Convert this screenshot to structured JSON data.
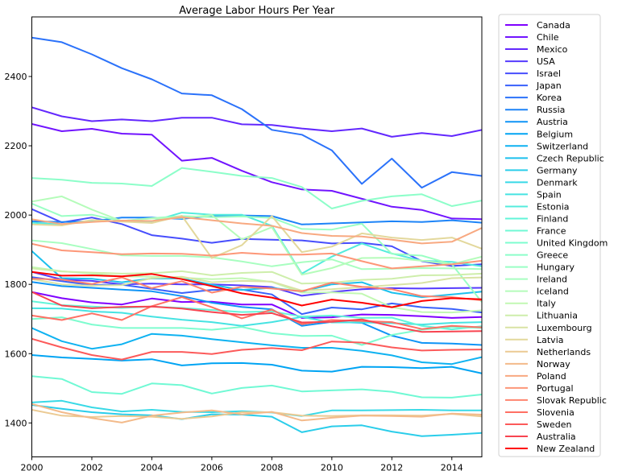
{
  "chart_data": {
    "type": "line",
    "title": "Average Labor Hours Per Year",
    "xlabel": "",
    "ylabel": "",
    "xlim": [
      2000,
      2015
    ],
    "ylim": [
      1302,
      2572
    ],
    "xticks": [
      2000,
      2002,
      2004,
      2006,
      2008,
      2010,
      2012,
      2014
    ],
    "yticks": [
      1400,
      1600,
      1800,
      2000,
      2200,
      2400
    ],
    "grid": false,
    "legend_position": "outside-right",
    "x": [
      2000,
      2001,
      2002,
      2003,
      2004,
      2005,
      2006,
      2007,
      2008,
      2009,
      2010,
      2011,
      2012,
      2013,
      2014,
      2015
    ],
    "series": [
      {
        "name": "Canada",
        "color": "#7f00ff",
        "values": [
          1778,
          1760,
          1748,
          1742,
          1759,
          1749,
          1750,
          1742,
          1742,
          1703,
          1705,
          1713,
          1712,
          1708,
          1703,
          1706
        ]
      },
      {
        "name": "Chile",
        "color": "#7114ff",
        "values": [
          2263,
          2242,
          2249,
          2235,
          2232,
          2157,
          2165,
          2128,
          2095,
          2074,
          2070,
          2047,
          2024,
          2015,
          1990,
          1988
        ]
      },
      {
        "name": "Mexico",
        "color": "#6328fe",
        "values": [
          2311,
          2285,
          2271,
          2276,
          2271,
          2281,
          2281,
          2262,
          2260,
          2250,
          2242,
          2250,
          2226,
          2237,
          2228,
          2246
        ]
      },
      {
        "name": "USA",
        "color": "#553bfe",
        "values": [
          1836,
          1814,
          1810,
          1800,
          1802,
          1800,
          1800,
          1797,
          1792,
          1767,
          1778,
          1786,
          1789,
          1788,
          1789,
          1790
        ]
      },
      {
        "name": "Israel",
        "color": "#474efd",
        "values": [
          2017,
          1979,
          1993,
          1974,
          1942,
          1932,
          1920,
          1931,
          1929,
          1927,
          1918,
          1920,
          1910,
          1867,
          1853,
          1858
        ]
      },
      {
        "name": "Japan",
        "color": "#3961fb",
        "values": [
          1821,
          1809,
          1798,
          1799,
          1787,
          1775,
          1784,
          1785,
          1771,
          1714,
          1733,
          1728,
          1745,
          1734,
          1729,
          1719
        ]
      },
      {
        "name": "Korea",
        "color": "#2b72fa",
        "values": [
          2512,
          2499,
          2464,
          2424,
          2392,
          2351,
          2346,
          2306,
          2246,
          2232,
          2187,
          2090,
          2163,
          2079,
          2124,
          2113
        ]
      },
      {
        "name": "Russia",
        "color": "#1d84f8",
        "values": [
          1982,
          1980,
          1982,
          1993,
          1993,
          1989,
          1998,
          1999,
          1997,
          1973,
          1976,
          1979,
          1982,
          1980,
          1985,
          1978
        ]
      },
      {
        "name": "Austria",
        "color": "#0f94f6",
        "values": [
          1807,
          1795,
          1790,
          1785,
          1780,
          1766,
          1747,
          1735,
          1728,
          1680,
          1692,
          1689,
          1652,
          1631,
          1629,
          1625
        ]
      },
      {
        "name": "Belgium",
        "color": "#00a4f3",
        "values": [
          1596,
          1589,
          1585,
          1580,
          1584,
          1566,
          1572,
          1573,
          1568,
          1551,
          1548,
          1562,
          1561,
          1558,
          1562,
          1543
        ]
      },
      {
        "name": "Switzerland",
        "color": "#0eb2f1",
        "values": [
          1674,
          1636,
          1614,
          1627,
          1657,
          1652,
          1642,
          1633,
          1624,
          1617,
          1617,
          1608,
          1595,
          1575,
          1570,
          1590
        ]
      },
      {
        "name": "Czech Republic",
        "color": "#1cc0ed",
        "values": [
          1896,
          1818,
          1816,
          1806,
          1817,
          1817,
          1799,
          1784,
          1790,
          1779,
          1800,
          1806,
          1776,
          1763,
          1771,
          1779
        ]
      },
      {
        "name": "Germany",
        "color": "#2acdea",
        "values": [
          1452,
          1441,
          1431,
          1425,
          1422,
          1411,
          1425,
          1424,
          1418,
          1373,
          1390,
          1393,
          1375,
          1362,
          1366,
          1371
        ]
      },
      {
        "name": "Denmark",
        "color": "#38d9e6",
        "values": [
          1459,
          1464,
          1445,
          1433,
          1438,
          1432,
          1431,
          1434,
          1430,
          1420,
          1436,
          1436,
          1437,
          1438,
          1436,
          1436
        ]
      },
      {
        "name": "Spain",
        "color": "#46e3e2",
        "values": [
          1731,
          1730,
          1722,
          1718,
          1707,
          1698,
          1691,
          1680,
          1691,
          1706,
          1690,
          1690,
          1688,
          1684,
          1689,
          1691
        ]
      },
      {
        "name": "Estonia",
        "color": "#54ecdd",
        "values": [
          1978,
          1973,
          1983,
          1983,
          1982,
          2007,
          2001,
          2001,
          1969,
          1831,
          1880,
          1918,
          1889,
          1868,
          1865,
          1852
        ]
      },
      {
        "name": "Finland",
        "color": "#62f4d9",
        "values": [
          1751,
          1740,
          1736,
          1732,
          1736,
          1732,
          1726,
          1720,
          1722,
          1707,
          1710,
          1703,
          1704,
          1680,
          1670,
          1679
        ]
      },
      {
        "name": "France",
        "color": "#70f9d4",
        "values": [
          1535,
          1527,
          1489,
          1484,
          1514,
          1509,
          1485,
          1501,
          1508,
          1491,
          1494,
          1497,
          1490,
          1474,
          1473,
          1482
        ]
      },
      {
        "name": "United Kingdom",
        "color": "#7efccf",
        "values": [
          1700,
          1705,
          1684,
          1674,
          1674,
          1674,
          1669,
          1677,
          1659,
          1651,
          1652,
          1625,
          1654,
          1669,
          1677,
          1674
        ]
      },
      {
        "name": "Greece",
        "color": "#8cfec9",
        "values": [
          2107,
          2102,
          2093,
          2091,
          2084,
          2136,
          2125,
          2113,
          2107,
          2081,
          2019,
          2041,
          2054,
          2060,
          2026,
          2042
        ]
      },
      {
        "name": "Hungary",
        "color": "#9affc4",
        "values": [
          2033,
          1997,
          2001,
          1983,
          1991,
          1997,
          1994,
          1996,
          1992,
          1960,
          1958,
          1975,
          1888,
          1883,
          1858,
          1749
        ]
      },
      {
        "name": "Ireland",
        "color": "#a8fec0",
        "values": [
          1927,
          1919,
          1902,
          1884,
          1882,
          1882,
          1878,
          1866,
          1852,
          1864,
          1872,
          1844,
          1845,
          1847,
          1846,
          1844
        ]
      },
      {
        "name": "Iceland",
        "color": "#b5fcba",
        "values": [
          2039,
          2054,
          2016,
          1983,
          1990,
          1992,
          2000,
          1930,
          1965,
          1828,
          1847,
          1876,
          1877,
          1868,
          1858,
          1880
        ]
      },
      {
        "name": "Italy",
        "color": "#c2f8b3",
        "values": [
          1850,
          1838,
          1831,
          1823,
          1822,
          1819,
          1815,
          1818,
          1807,
          1776,
          1777,
          1773,
          1734,
          1720,
          1719,
          1725
        ]
      },
      {
        "name": "Lithuania",
        "color": "#ceeeab",
        "values": [
          1846,
          1837,
          1834,
          1831,
          1832,
          1838,
          1826,
          1833,
          1836,
          1802,
          1805,
          1813,
          1816,
          1826,
          1827,
          1831
        ]
      },
      {
        "name": "Luxembourg",
        "color": "#d9e3a4",
        "values": [
          1815,
          1800,
          1796,
          1798,
          1818,
          1822,
          1806,
          1810,
          1808,
          1782,
          1786,
          1792,
          1798,
          1804,
          1818,
          1820
        ]
      },
      {
        "name": "Latvia",
        "color": "#e3d89c",
        "values": [
          1973,
          1970,
          1986,
          1981,
          1977,
          1998,
          1876,
          1913,
          1997,
          1893,
          1909,
          1947,
          1935,
          1928,
          1935,
          1903
        ]
      },
      {
        "name": "Netherlands",
        "color": "#ebca93",
        "values": [
          1438,
          1421,
          1417,
          1420,
          1418,
          1412,
          1419,
          1431,
          1431,
          1421,
          1420,
          1422,
          1422,
          1421,
          1426,
          1419
        ]
      },
      {
        "name": "Norway",
        "color": "#f3ba8a",
        "values": [
          1455,
          1431,
          1414,
          1401,
          1421,
          1430,
          1436,
          1425,
          1432,
          1407,
          1415,
          1421,
          1420,
          1418,
          1427,
          1424
        ]
      },
      {
        "name": "Poland",
        "color": "#f8a981",
        "values": [
          1988,
          1974,
          1980,
          1984,
          1983,
          1994,
          1985,
          1976,
          1969,
          1948,
          1940,
          1938,
          1929,
          1918,
          1923,
          1963
        ]
      },
      {
        "name": "Portugal",
        "color": "#fd9778",
        "values": [
          1917,
          1898,
          1893,
          1887,
          1889,
          1888,
          1883,
          1891,
          1886,
          1886,
          1889,
          1867,
          1846,
          1852,
          1858,
          1868
        ]
      },
      {
        "name": "Slovak Republic",
        "color": "#ff846e",
        "values": [
          1816,
          1814,
          1801,
          1820,
          1789,
          1809,
          1776,
          1793,
          1788,
          1780,
          1805,
          1793,
          1786,
          1766,
          1763,
          1754
        ]
      },
      {
        "name": "Slovenia",
        "color": "#ff7064",
        "values": [
          1710,
          1697,
          1716,
          1697,
          1737,
          1763,
          1734,
          1702,
          1727,
          1685,
          1697,
          1694,
          1691,
          1671,
          1680,
          1676
        ]
      },
      {
        "name": "Sweden",
        "color": "#fc5a5a",
        "values": [
          1643,
          1618,
          1596,
          1583,
          1605,
          1605,
          1599,
          1611,
          1616,
          1610,
          1635,
          1632,
          1618,
          1609,
          1611,
          1612
        ]
      },
      {
        "name": "Australia",
        "color": "#f84450",
        "values": [
          1778,
          1739,
          1731,
          1735,
          1736,
          1730,
          1720,
          1712,
          1717,
          1690,
          1692,
          1699,
          1679,
          1663,
          1664,
          1665
        ]
      },
      {
        "name": "New Zealand",
        "color": "#ff0000",
        "values": [
          1836,
          1825,
          1826,
          1823,
          1830,
          1815,
          1795,
          1774,
          1762,
          1739,
          1756,
          1747,
          1734,
          1752,
          1760,
          1757
        ]
      }
    ]
  }
}
